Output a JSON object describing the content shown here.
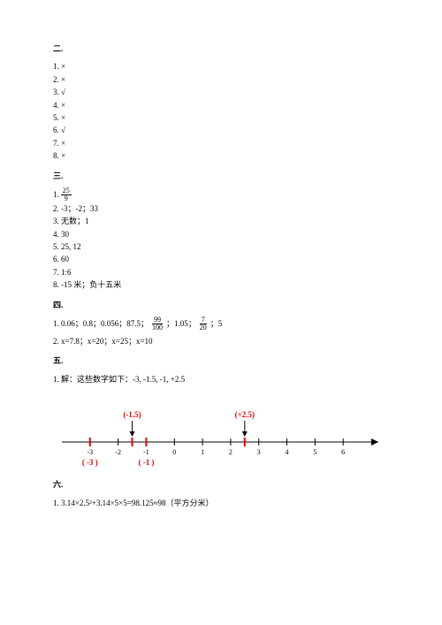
{
  "section2": {
    "title": "二.",
    "items": [
      "1. ×",
      "2. ×",
      "3. √",
      "4. ×",
      "5. ×",
      "6. √",
      "7. ×",
      "8. ×"
    ]
  },
  "section3": {
    "title": "三.",
    "first_label": "1.  ",
    "frac": {
      "num": "25",
      "den": "9"
    },
    "rest": [
      "2. -3；-2；33",
      "3. 无数；1",
      "4. 30",
      "5. 25, 12",
      "6. 60",
      "7. 1:6",
      "8. -15 米；负十五米"
    ]
  },
  "section4": {
    "title": "四.",
    "line1_part1": "1. 0.06；0.8；0.056；87.5；  ",
    "frac1": {
      "num": "99",
      "den": "100"
    },
    "line1_mid": "  ；1.05；  ",
    "frac2": {
      "num": "7",
      "den": "20"
    },
    "line1_end": "  ；5",
    "line2": "2. x=7.8；x=20；x=25；x=10"
  },
  "section5": {
    "title": "五.",
    "line1": "1. 解：这些数字如下：-3, -1.5, -1, +2.5",
    "numberline": {
      "points": [
        {
          "v": -3,
          "label": "( -3 )",
          "top": true
        },
        {
          "v": -1.5,
          "label": "(-1.5)",
          "top": false
        },
        {
          "v": -1,
          "label": "( -1 )",
          "top": true
        },
        {
          "v": 2.5,
          "label": "(+2.5)",
          "top": false
        }
      ],
      "ticks": [
        -3,
        -2,
        -1,
        0,
        1,
        2,
        3,
        4,
        5,
        6
      ],
      "range": [
        -4,
        7
      ]
    }
  },
  "section6": {
    "title": "六.",
    "line1": "1. 3.14×2.5²+3.14×5×5=98.125≈98（平方分米）"
  }
}
